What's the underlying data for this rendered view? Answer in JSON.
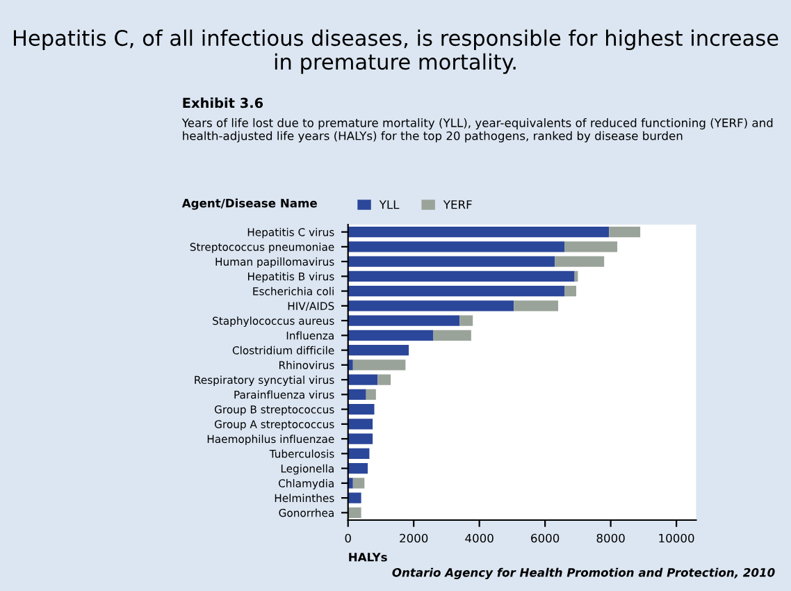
{
  "chart_data": {
    "type": "bar",
    "orientation": "horizontal",
    "stacked": true,
    "title": "Hepatitis C, of all infectious diseases, is responsible for highest increase in premature mortality.",
    "subtitle": "Years of life lost due to premature mortality (YLL), year-equivalents of reduced functioning (YERF) and health-adjusted life years (HALYs) for the top 20 pathogens, ranked by disease burden",
    "annotations": [
      "Exhibit 3.6",
      "Agent/Disease Name",
      "Ontario Agency for Health Promotion and Protection, 2010"
    ],
    "xlabel": "HALYs",
    "categories": [
      "Hepatitis C virus",
      "Streptococcus pneumoniae",
      "Human papillomavirus",
      "Hepatitis B virus",
      "Escherichia coli",
      "HIV/AIDS",
      "Staphylococcus aureus",
      "Influenza",
      "Clostridium difficile",
      "Rhinovirus",
      "Respiratory syncytial virus",
      "Parainfluenza virus",
      "Group B streptococcus",
      "Group A streptococcus",
      "Haemophilus influenzae",
      "Tuberculosis",
      "Legionella",
      "Chlamydia",
      "Helminthes",
      "Gonorrhea"
    ],
    "series": [
      {
        "name": "YLL",
        "color": "#2b479a",
        "values": [
          7950,
          6600,
          6300,
          6900,
          6600,
          5050,
          3400,
          2600,
          1850,
          150,
          900,
          550,
          800,
          750,
          750,
          650,
          600,
          150,
          400,
          0
        ]
      },
      {
        "name": "YERF",
        "color": "#9aa39a",
        "values": [
          950,
          1600,
          1500,
          100,
          350,
          1350,
          400,
          1150,
          0,
          1600,
          400,
          300,
          0,
          0,
          0,
          0,
          0,
          350,
          0,
          400
        ]
      }
    ],
    "xlim": [
      0,
      10600
    ],
    "xticks": [
      0,
      2000,
      4000,
      6000,
      8000,
      10000
    ],
    "legend": "top left",
    "grid": false
  }
}
